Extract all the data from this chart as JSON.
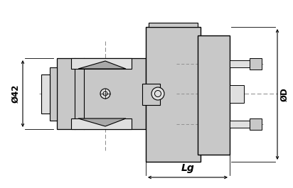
{
  "bg_color": "#ffffff",
  "part_gray": "#c8c8c8",
  "part_gray_dark": "#a8a8a8",
  "part_gray_light": "#e0e0e0",
  "dim_line_color": "#000000",
  "center_line_color": "#888888",
  "dim_phi42_label": "Ø42",
  "dim_phiD_label": "ØD",
  "dim_Lg_label": "Lg",
  "figsize": [
    4.12,
    2.65
  ],
  "dpi": 100
}
